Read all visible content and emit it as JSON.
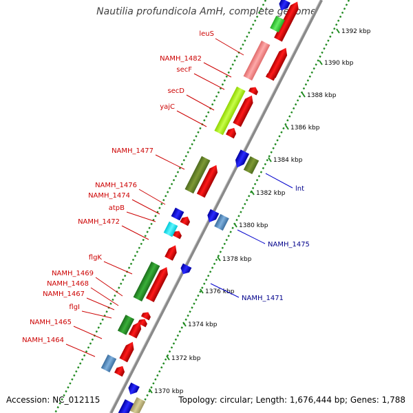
{
  "title": "Nautilia profundicola AmH, complete genome",
  "footer": {
    "accession": "Accession: NC_012115",
    "info": "Topology: circular; Length: 1,676,444 bp; Genes: 1,788"
  },
  "colors": {
    "backbone": "#808080",
    "cds_arrow": "#ff0000",
    "tick_dots": "#228b22",
    "forward_label": "#cc0000",
    "reverse_label": "#00008b"
  },
  "scale_ticks": [
    {
      "label": "1392 kbp",
      "kbp": 1392
    },
    {
      "label": "1390 kbp",
      "kbp": 1390
    },
    {
      "label": "1388 kbp",
      "kbp": 1388
    },
    {
      "label": "1386 kbp",
      "kbp": 1386
    },
    {
      "label": "1384 kbp",
      "kbp": 1384
    },
    {
      "label": "1382 kbp",
      "kbp": 1382
    },
    {
      "label": "1380 kbp",
      "kbp": 1380
    },
    {
      "label": "1378 kbp",
      "kbp": 1378
    },
    {
      "label": "1376 kbp",
      "kbp": 1376
    },
    {
      "label": "1374 kbp",
      "kbp": 1374
    },
    {
      "label": "1372 kbp",
      "kbp": 1372
    },
    {
      "label": "1370 kbp",
      "kbp": 1370
    }
  ],
  "forward_gene_labels": [
    "leuS",
    "NAMH_1482",
    "secF",
    "secD",
    "yajC",
    "NAMH_1477",
    "NAMH_1476",
    "NAMH_1474",
    "atpB",
    "NAMH_1472",
    "flgK",
    "NAMH_1469",
    "NAMH_1468",
    "NAMH_1467",
    "flgI",
    "NAMH_1465",
    "NAMH_1464"
  ],
  "reverse_gene_labels": [
    "lnt",
    "NAMH_1475",
    "NAMH_1471"
  ]
}
